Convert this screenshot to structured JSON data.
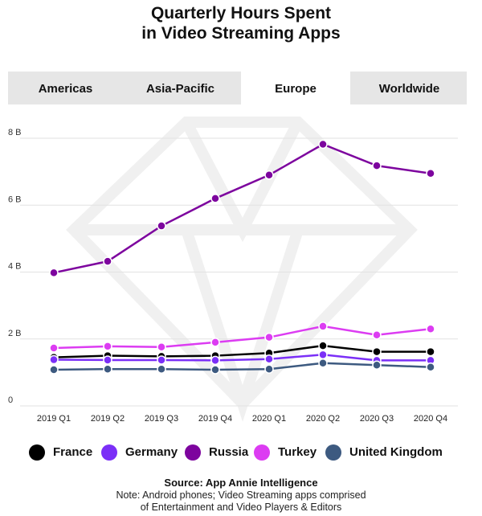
{
  "title_line1": "Quarterly Hours Spent",
  "title_line2": "in Video Streaming Apps",
  "tabs": [
    {
      "label": "Americas",
      "active": false
    },
    {
      "label": "Asia-Pacific",
      "active": false
    },
    {
      "label": "Europe",
      "active": true
    },
    {
      "label": "Worldwide",
      "active": false
    }
  ],
  "source": "Source: App Annie Intelligence",
  "note_line1": "Note: Android phones; Video Streaming apps comprised",
  "note_line2": "of Entertainment and Video Players & Editors",
  "watermark_icon": "diamond-logo-icon",
  "chart_data": {
    "type": "line",
    "categories": [
      "2019 Q1",
      "2019 Q2",
      "2019 Q3",
      "2019 Q4",
      "2020 Q1",
      "2020 Q2",
      "2020 Q3",
      "2020 Q4"
    ],
    "y_ticks": [
      0,
      2,
      4,
      6,
      8
    ],
    "y_tick_labels": [
      "0",
      "2 B",
      "4 B",
      "6 B",
      "8 B"
    ],
    "ylim": [
      0,
      8
    ],
    "grid": true,
    "legend_position": "bottom",
    "series": [
      {
        "name": "France",
        "color": "#000000",
        "values": [
          1.45,
          1.5,
          1.48,
          1.5,
          1.58,
          1.8,
          1.62,
          1.62
        ]
      },
      {
        "name": "Germany",
        "color": "#7b2ff7",
        "values": [
          1.38,
          1.37,
          1.37,
          1.36,
          1.4,
          1.53,
          1.36,
          1.36
        ]
      },
      {
        "name": "Russia",
        "color": "#7d049e",
        "values": [
          3.98,
          4.32,
          5.38,
          6.2,
          6.9,
          7.82,
          7.18,
          6.95
        ]
      },
      {
        "name": "Turkey",
        "color": "#dc3cf2",
        "values": [
          1.73,
          1.78,
          1.76,
          1.9,
          2.05,
          2.38,
          2.12,
          2.3
        ]
      },
      {
        "name": "United Kingdom",
        "color": "#3d5a80",
        "values": [
          1.08,
          1.1,
          1.1,
          1.08,
          1.1,
          1.28,
          1.22,
          1.16
        ]
      }
    ]
  }
}
